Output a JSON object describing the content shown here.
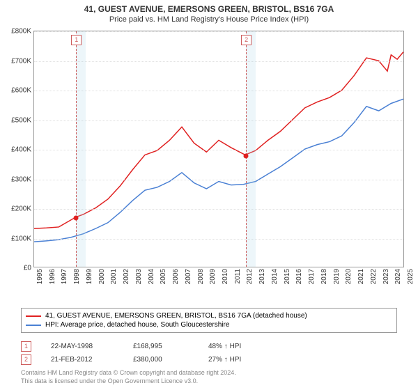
{
  "title": "41, GUEST AVENUE, EMERSONS GREEN, BRISTOL, BS16 7GA",
  "subtitle": "Price paid vs. HM Land Registry's House Price Index (HPI)",
  "chart": {
    "type": "line",
    "background_color": "#ffffff",
    "grid_color": "#e0e0e0",
    "border_color": "#999999",
    "ylim": [
      0,
      800000
    ],
    "ytick_step": 100000,
    "yticks": [
      "£0",
      "£100K",
      "£200K",
      "£300K",
      "£400K",
      "£500K",
      "£600K",
      "£700K",
      "£800K"
    ],
    "x_start": 1995,
    "x_end": 2025,
    "xticks": [
      "1995",
      "1996",
      "1997",
      "1998",
      "1999",
      "2000",
      "2001",
      "2002",
      "2003",
      "2004",
      "2005",
      "2006",
      "2007",
      "2008",
      "2009",
      "2010",
      "2011",
      "2012",
      "2013",
      "2014",
      "2015",
      "2016",
      "2017",
      "2018",
      "2019",
      "2020",
      "2021",
      "2022",
      "2023",
      "2024",
      "2025"
    ],
    "marker_band_color": "rgba(173,216,230,0.22)",
    "marker_dash_color": "#cd5c5c",
    "series": [
      {
        "name": "property",
        "color": "#e02020",
        "width": 1.5,
        "data": [
          [
            1995,
            130000
          ],
          [
            1996,
            132000
          ],
          [
            1997,
            135000
          ],
          [
            1998.4,
            168995
          ],
          [
            1999,
            178000
          ],
          [
            2000,
            200000
          ],
          [
            2001,
            230000
          ],
          [
            2002,
            275000
          ],
          [
            2003,
            330000
          ],
          [
            2004,
            380000
          ],
          [
            2005,
            395000
          ],
          [
            2006,
            430000
          ],
          [
            2007,
            475000
          ],
          [
            2008,
            420000
          ],
          [
            2009,
            390000
          ],
          [
            2010,
            430000
          ],
          [
            2011,
            405000
          ],
          [
            2012.15,
            380000
          ],
          [
            2013,
            395000
          ],
          [
            2014,
            430000
          ],
          [
            2015,
            460000
          ],
          [
            2016,
            500000
          ],
          [
            2017,
            540000
          ],
          [
            2018,
            560000
          ],
          [
            2019,
            575000
          ],
          [
            2020,
            600000
          ],
          [
            2021,
            650000
          ],
          [
            2022,
            710000
          ],
          [
            2023,
            700000
          ],
          [
            2023.7,
            665000
          ],
          [
            2024,
            720000
          ],
          [
            2024.5,
            705000
          ],
          [
            2025,
            730000
          ]
        ]
      },
      {
        "name": "hpi",
        "color": "#4a80d4",
        "width": 1.5,
        "data": [
          [
            1995,
            85000
          ],
          [
            1996,
            88000
          ],
          [
            1997,
            92000
          ],
          [
            1998,
            100000
          ],
          [
            1999,
            112000
          ],
          [
            2000,
            130000
          ],
          [
            2001,
            150000
          ],
          [
            2002,
            185000
          ],
          [
            2003,
            225000
          ],
          [
            2004,
            260000
          ],
          [
            2005,
            270000
          ],
          [
            2006,
            290000
          ],
          [
            2007,
            320000
          ],
          [
            2008,
            285000
          ],
          [
            2009,
            265000
          ],
          [
            2010,
            290000
          ],
          [
            2011,
            278000
          ],
          [
            2012,
            280000
          ],
          [
            2013,
            290000
          ],
          [
            2014,
            315000
          ],
          [
            2015,
            340000
          ],
          [
            2016,
            370000
          ],
          [
            2017,
            400000
          ],
          [
            2018,
            415000
          ],
          [
            2019,
            425000
          ],
          [
            2020,
            445000
          ],
          [
            2021,
            490000
          ],
          [
            2022,
            545000
          ],
          [
            2023,
            530000
          ],
          [
            2024,
            555000
          ],
          [
            2025,
            570000
          ]
        ]
      }
    ],
    "sale_points": [
      {
        "x": 1998.4,
        "y": 168995,
        "color": "#e02020"
      },
      {
        "x": 2012.15,
        "y": 380000,
        "color": "#e02020"
      }
    ],
    "markers": [
      {
        "id": "1",
        "x": 1998.4
      },
      {
        "id": "2",
        "x": 2012.15
      }
    ]
  },
  "legend": {
    "series1": {
      "label": "41, GUEST AVENUE, EMERSONS GREEN, BRISTOL, BS16 7GA (detached house)",
      "color": "#e02020"
    },
    "series2": {
      "label": "HPI: Average price, detached house, South Gloucestershire",
      "color": "#4a80d4"
    }
  },
  "sales": [
    {
      "id": "1",
      "date": "22-MAY-1998",
      "price": "£168,995",
      "delta": "48% ↑ HPI"
    },
    {
      "id": "2",
      "date": "21-FEB-2012",
      "price": "£380,000",
      "delta": "27% ↑ HPI"
    }
  ],
  "footer": {
    "line1": "Contains HM Land Registry data © Crown copyright and database right 2024.",
    "line2": "This data is licensed under the Open Government Licence v3.0."
  }
}
